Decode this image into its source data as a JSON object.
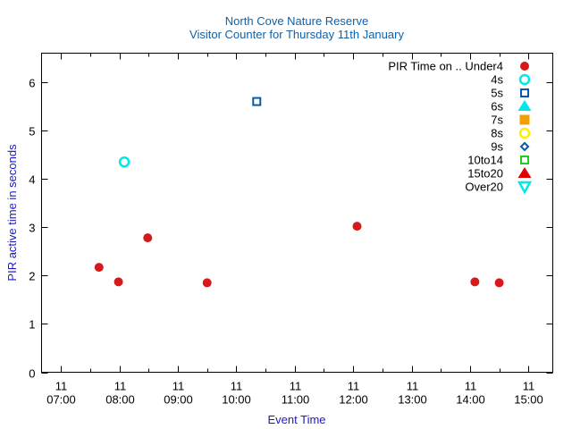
{
  "chart_data": {
    "type": "scatter",
    "title": "North Cove Nature Reserve",
    "subtitle": "Visitor Counter for Thursday 11th January",
    "xlabel": "Event Time",
    "ylabel": "PIR active time in seconds",
    "xlim": [
      "06:40",
      "15:25"
    ],
    "ylim": [
      0,
      6.6
    ],
    "x_ticks": [
      {
        "time": "07:00",
        "day": "11",
        "label": "07:00"
      },
      {
        "time": "08:00",
        "day": "11",
        "label": "08:00"
      },
      {
        "time": "09:00",
        "day": "11",
        "label": "09:00"
      },
      {
        "time": "10:00",
        "day": "11",
        "label": "10:00"
      },
      {
        "time": "11:00",
        "day": "11",
        "label": "11:00"
      },
      {
        "time": "12:00",
        "day": "11",
        "label": "12:00"
      },
      {
        "time": "13:00",
        "day": "11",
        "label": "13:00"
      },
      {
        "time": "14:00",
        "day": "11",
        "label": "14:00"
      },
      {
        "time": "15:00",
        "day": "11",
        "label": "15:00"
      }
    ],
    "y_ticks": [
      "0",
      "1",
      "2",
      "3",
      "4",
      "5",
      "6"
    ],
    "legend_title": "PIR Time on ..",
    "legend_position": "top-right",
    "grid": false,
    "series": [
      {
        "name": "Under4",
        "marker": "circle-filled",
        "color": "#d7191c",
        "points": [
          {
            "x": "07:39",
            "y": 2.17
          },
          {
            "x": "07:59",
            "y": 1.87
          },
          {
            "x": "08:29",
            "y": 2.78
          },
          {
            "x": "09:30",
            "y": 1.85
          },
          {
            "x": "12:04",
            "y": 3.02
          },
          {
            "x": "14:05",
            "y": 1.87
          },
          {
            "x": "14:30",
            "y": 1.85
          }
        ]
      },
      {
        "name": "4s",
        "marker": "circle-open",
        "color": "#00e8e8",
        "points": [
          {
            "x": "08:05",
            "y": 4.35
          }
        ]
      },
      {
        "name": "5s",
        "marker": "square-open",
        "color": "#0b5aa8",
        "points": [
          {
            "x": "10:21",
            "y": 5.6
          }
        ]
      },
      {
        "name": "6s",
        "marker": "triangle-filled",
        "color": "#00e8e8",
        "points": []
      },
      {
        "name": "7s",
        "marker": "square-filled",
        "color": "#f0a000",
        "points": []
      },
      {
        "name": "8s",
        "marker": "circle-open",
        "color": "#ffee00",
        "points": []
      },
      {
        "name": "9s",
        "marker": "diamond-open",
        "color": "#0b5aa8",
        "points": []
      },
      {
        "name": "10to14",
        "marker": "square-open",
        "color": "#22cc22",
        "points": []
      },
      {
        "name": "15to20",
        "marker": "triangle-filled",
        "color": "#e00000",
        "points": []
      },
      {
        "name": "Over20",
        "marker": "triangle-down-open",
        "color": "#00e8e8",
        "points": []
      }
    ]
  }
}
